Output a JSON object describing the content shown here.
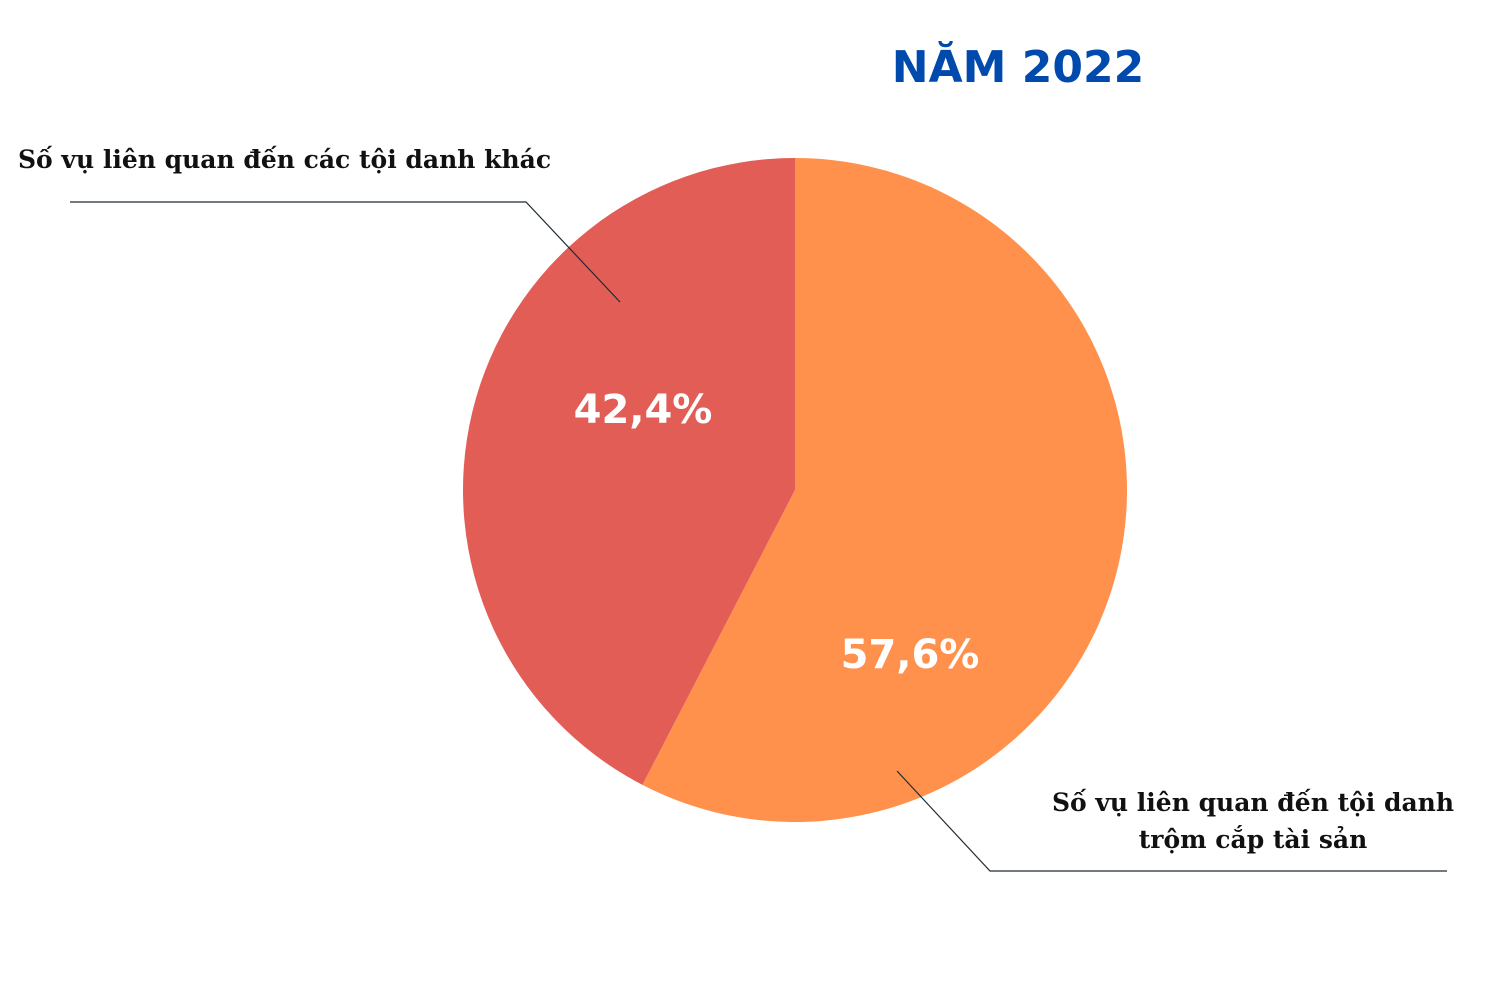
{
  "chart_data": {
    "type": "pie",
    "title": "NĂM 2022",
    "slices": [
      {
        "name": "Số vụ liên quan đến tội danh trộm cắp tài sản",
        "label_lines": [
          "Số vụ liên quan đến tội danh",
          "trộm cắp tài sản"
        ],
        "value": 57.6,
        "value_label": "57,6%",
        "color": "#ff914d"
      },
      {
        "name": "Số vụ liên quan đến các tội danh khác",
        "label_lines": [
          "Số vụ liên quan đến các tội danh khác"
        ],
        "value": 42.4,
        "value_label": "42,4%",
        "color": "#e35d57"
      }
    ],
    "start": "12 o'clock",
    "direction": "clockwise",
    "title_color": "#004aad",
    "legend": "none"
  }
}
